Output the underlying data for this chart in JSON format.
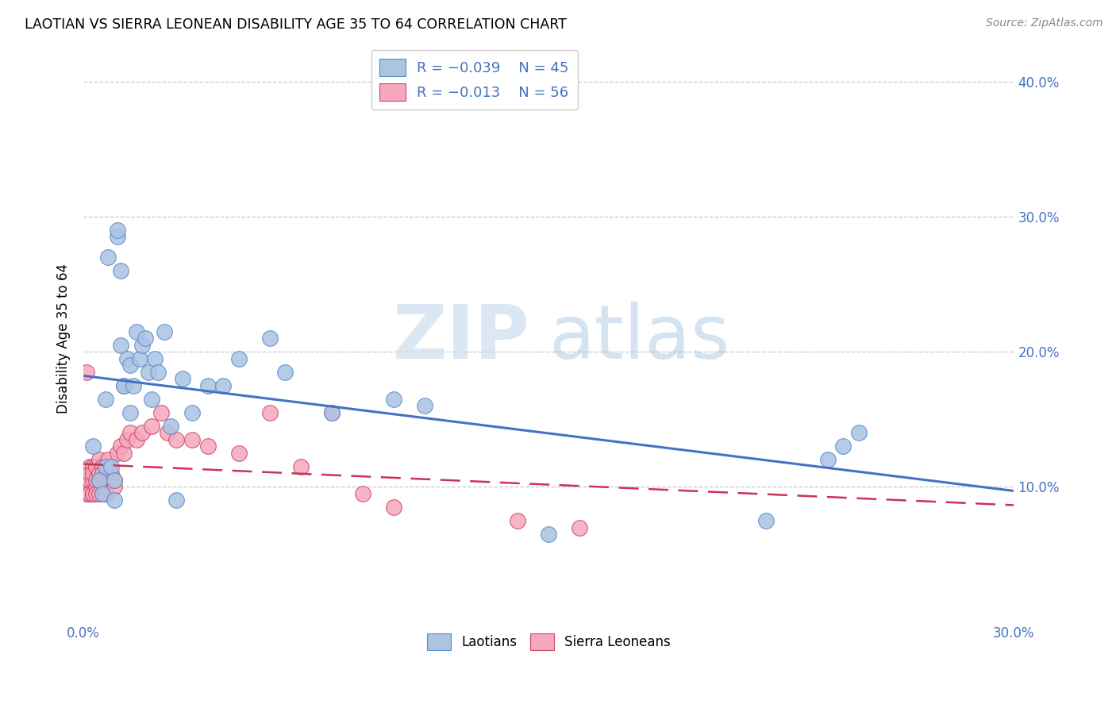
{
  "title": "LAOTIAN VS SIERRA LEONEAN DISABILITY AGE 35 TO 64 CORRELATION CHART",
  "source": "Source: ZipAtlas.com",
  "ylabel": "Disability Age 35 to 64",
  "xlim": [
    0.0,
    0.3
  ],
  "ylim": [
    0.0,
    0.42
  ],
  "xtick_vals": [
    0.0,
    0.05,
    0.1,
    0.15,
    0.2,
    0.25,
    0.3
  ],
  "ytick_vals": [
    0.1,
    0.2,
    0.3,
    0.4
  ],
  "laotian_color": "#aac4e2",
  "sierra_leonean_color": "#f5a8bc",
  "laotian_edge_color": "#5588cc",
  "sierra_leonean_edge_color": "#cc4466",
  "laotian_line_color": "#4472c4",
  "sierra_leonean_line_color": "#cc3355",
  "watermark_zip": "ZIP",
  "watermark_atlas": "atlas",
  "background_color": "#ffffff",
  "grid_color": "#c8c8c8",
  "laotian_x": [
    0.003,
    0.005,
    0.006,
    0.007,
    0.007,
    0.008,
    0.009,
    0.01,
    0.01,
    0.011,
    0.011,
    0.012,
    0.012,
    0.013,
    0.013,
    0.014,
    0.015,
    0.015,
    0.016,
    0.017,
    0.018,
    0.019,
    0.02,
    0.021,
    0.022,
    0.023,
    0.024,
    0.026,
    0.028,
    0.03,
    0.032,
    0.035,
    0.04,
    0.045,
    0.05,
    0.06,
    0.065,
    0.08,
    0.1,
    0.11,
    0.15,
    0.22,
    0.24,
    0.245,
    0.25
  ],
  "laotian_y": [
    0.13,
    0.105,
    0.095,
    0.165,
    0.115,
    0.27,
    0.115,
    0.105,
    0.09,
    0.285,
    0.29,
    0.26,
    0.205,
    0.175,
    0.175,
    0.195,
    0.19,
    0.155,
    0.175,
    0.215,
    0.195,
    0.205,
    0.21,
    0.185,
    0.165,
    0.195,
    0.185,
    0.215,
    0.145,
    0.09,
    0.18,
    0.155,
    0.175,
    0.175,
    0.195,
    0.21,
    0.185,
    0.155,
    0.165,
    0.16,
    0.065,
    0.075,
    0.12,
    0.13,
    0.14
  ],
  "sierra_leonean_x": [
    0.001,
    0.001,
    0.001,
    0.002,
    0.002,
    0.002,
    0.002,
    0.002,
    0.003,
    0.003,
    0.003,
    0.003,
    0.003,
    0.004,
    0.004,
    0.004,
    0.004,
    0.004,
    0.005,
    0.005,
    0.005,
    0.005,
    0.006,
    0.006,
    0.006,
    0.007,
    0.007,
    0.007,
    0.008,
    0.008,
    0.008,
    0.009,
    0.009,
    0.01,
    0.01,
    0.011,
    0.012,
    0.013,
    0.014,
    0.015,
    0.017,
    0.019,
    0.022,
    0.025,
    0.027,
    0.03,
    0.035,
    0.04,
    0.05,
    0.06,
    0.07,
    0.08,
    0.09,
    0.1,
    0.14,
    0.16
  ],
  "sierra_leonean_y": [
    0.185,
    0.105,
    0.095,
    0.095,
    0.115,
    0.105,
    0.095,
    0.11,
    0.095,
    0.115,
    0.105,
    0.11,
    0.095,
    0.1,
    0.115,
    0.105,
    0.095,
    0.115,
    0.095,
    0.105,
    0.12,
    0.11,
    0.095,
    0.115,
    0.11,
    0.105,
    0.095,
    0.115,
    0.105,
    0.115,
    0.12,
    0.105,
    0.11,
    0.1,
    0.105,
    0.125,
    0.13,
    0.125,
    0.135,
    0.14,
    0.135,
    0.14,
    0.145,
    0.155,
    0.14,
    0.135,
    0.135,
    0.13,
    0.125,
    0.155,
    0.115,
    0.155,
    0.095,
    0.085,
    0.075,
    0.07
  ]
}
